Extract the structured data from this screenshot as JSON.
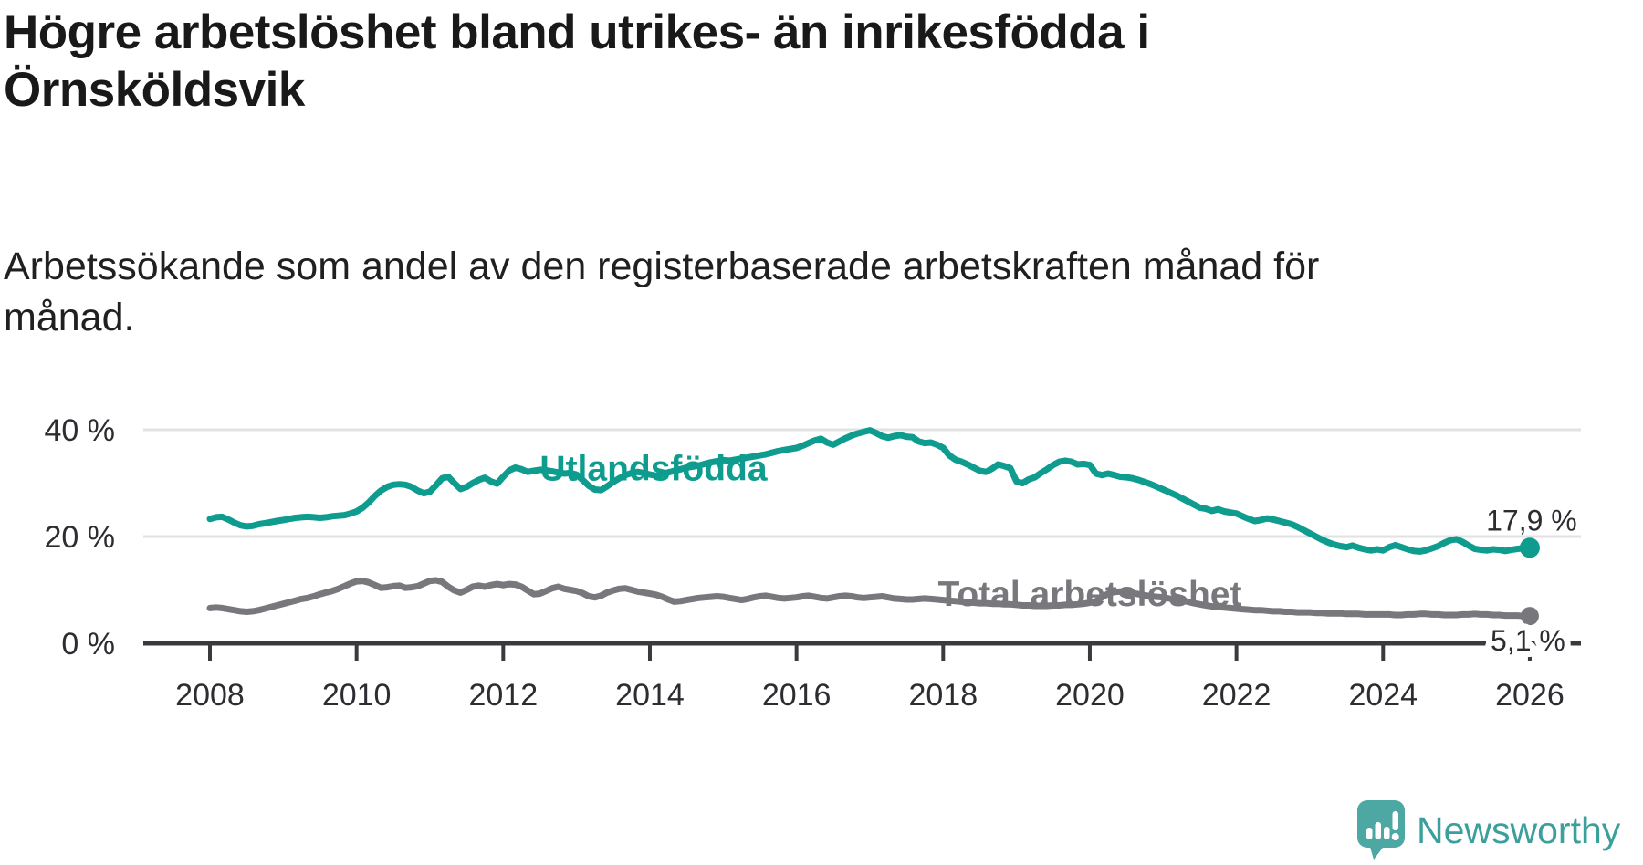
{
  "header": {
    "title": "Högre arbetslöshet bland utrikes- än inrikesfödda i\nÖrnsköldsvik",
    "subtitle": "Arbetssökande som andel av den registerbaserade arbetskraften månad för\nmånad."
  },
  "chart_data": {
    "type": "line",
    "title": "Högre arbetslöshet bland utrikes- än inrikesfödda i Örnsköldsvik",
    "subtitle": "Arbetssökande som andel av den registerbaserade arbetskraften månad för månad.",
    "unit": "%",
    "frequency": "monthly",
    "x_start": 2008,
    "x_end": 2026,
    "points_per_year": 12,
    "xlim": [
      2007.1,
      2026.7
    ],
    "ylim": [
      0,
      44
    ],
    "grid": "horizontal",
    "legend_position": "inline-labels",
    "x_tick_years": [
      2008,
      2010,
      2012,
      2014,
      2016,
      2018,
      2020,
      2022,
      2024,
      2026
    ],
    "y_ticks": [
      {
        "value": 40,
        "label": "40 %"
      },
      {
        "value": 20,
        "label": "20 %"
      },
      {
        "value": 0,
        "label": "0 %"
      }
    ],
    "style": {
      "grid_color": "#e2e2e2",
      "axis_color": "#3a3a3e",
      "tick_label_color": "#2d2d31",
      "value_label_color": "#2d2d31"
    },
    "series": [
      {
        "name": "Utlandsfödda",
        "color": "#0d9c8d",
        "end_label": "17,9 %",
        "end_value": 17.9,
        "label_anchor": {
          "year": 2014.05,
          "value": 32.9
        },
        "values": [
          23.3,
          23.6,
          23.7,
          23.2,
          22.6,
          22.1,
          21.9,
          22.0,
          22.3,
          22.5,
          22.7,
          22.9,
          23.1,
          23.3,
          23.5,
          23.6,
          23.7,
          23.6,
          23.5,
          23.6,
          23.8,
          23.9,
          24.0,
          24.3,
          24.7,
          25.4,
          26.4,
          27.6,
          28.6,
          29.3,
          29.7,
          29.8,
          29.7,
          29.3,
          28.6,
          28.1,
          28.4,
          29.6,
          30.9,
          31.2,
          30.0,
          28.9,
          29.3,
          30.0,
          30.6,
          31.0,
          30.3,
          29.9,
          31.2,
          32.4,
          32.9,
          32.6,
          32.1,
          32.3,
          32.5,
          32.4,
          32.2,
          32.0,
          31.8,
          31.9,
          31.6,
          30.6,
          29.5,
          28.8,
          28.7,
          29.4,
          30.2,
          30.9,
          31.5,
          31.9,
          32.1,
          31.9,
          31.6,
          31.4,
          31.7,
          32.0,
          32.3,
          32.6,
          32.9,
          33.1,
          33.3,
          33.6,
          33.9,
          34.1,
          34.3,
          34.2,
          34.4,
          34.6,
          34.8,
          35.0,
          35.2,
          35.4,
          35.7,
          36.0,
          36.2,
          36.4,
          36.6,
          37.0,
          37.5,
          38.0,
          38.3,
          37.6,
          37.2,
          37.8,
          38.4,
          38.9,
          39.3,
          39.6,
          39.9,
          39.4,
          38.8,
          38.5,
          38.8,
          39.0,
          38.7,
          38.6,
          37.8,
          37.5,
          37.6,
          37.2,
          36.6,
          35.2,
          34.4,
          34.0,
          33.5,
          32.9,
          32.3,
          32.1,
          32.7,
          33.5,
          33.2,
          32.8,
          30.3,
          30.0,
          30.7,
          31.1,
          31.9,
          32.6,
          33.4,
          34.0,
          34.2,
          34.0,
          33.5,
          33.6,
          33.4,
          31.8,
          31.5,
          31.8,
          31.5,
          31.2,
          31.1,
          30.9,
          30.6,
          30.2,
          29.8,
          29.3,
          28.8,
          28.3,
          27.8,
          27.2,
          26.6,
          26.0,
          25.4,
          25.2,
          24.8,
          25.1,
          24.7,
          24.5,
          24.3,
          23.8,
          23.3,
          22.9,
          23.1,
          23.4,
          23.2,
          22.9,
          22.6,
          22.3,
          21.8,
          21.2,
          20.6,
          20.0,
          19.4,
          18.9,
          18.5,
          18.2,
          18.0,
          18.3,
          17.9,
          17.6,
          17.4,
          17.6,
          17.4,
          18.0,
          18.4,
          18.0,
          17.6,
          17.3,
          17.2,
          17.4,
          17.8,
          18.2,
          18.8,
          19.3,
          19.5,
          19.0,
          18.3,
          17.7,
          17.5,
          17.4,
          17.6,
          17.5,
          17.3,
          17.5,
          17.7,
          17.8,
          17.9
        ]
      },
      {
        "name": "Total arbetslöshet",
        "color": "#77777c",
        "end_label": "5,1 %",
        "end_value": 5.1,
        "label_anchor": {
          "year": 2020.0,
          "value": 9.4
        },
        "values": [
          6.6,
          6.7,
          6.6,
          6.4,
          6.2,
          6.0,
          5.9,
          6.0,
          6.2,
          6.5,
          6.8,
          7.1,
          7.4,
          7.7,
          8.0,
          8.3,
          8.5,
          8.8,
          9.2,
          9.5,
          9.8,
          10.2,
          10.7,
          11.2,
          11.6,
          11.7,
          11.4,
          10.9,
          10.4,
          10.5,
          10.7,
          10.8,
          10.4,
          10.5,
          10.7,
          11.2,
          11.7,
          11.8,
          11.5,
          10.6,
          9.9,
          9.5,
          10.0,
          10.6,
          10.8,
          10.6,
          10.9,
          11.1,
          10.9,
          11.1,
          11.0,
          10.6,
          9.9,
          9.2,
          9.3,
          9.8,
          10.3,
          10.6,
          10.2,
          10.0,
          9.8,
          9.4,
          8.8,
          8.6,
          8.9,
          9.5,
          9.9,
          10.2,
          10.3,
          10.0,
          9.7,
          9.5,
          9.3,
          9.1,
          8.7,
          8.2,
          7.8,
          7.9,
          8.1,
          8.3,
          8.5,
          8.6,
          8.7,
          8.8,
          8.7,
          8.5,
          8.3,
          8.1,
          8.3,
          8.6,
          8.8,
          8.9,
          8.7,
          8.5,
          8.4,
          8.5,
          8.6,
          8.8,
          8.9,
          8.7,
          8.5,
          8.4,
          8.6,
          8.8,
          8.9,
          8.8,
          8.6,
          8.5,
          8.6,
          8.7,
          8.8,
          8.6,
          8.4,
          8.3,
          8.2,
          8.2,
          8.3,
          8.4,
          8.3,
          8.2,
          8.1,
          8.0,
          7.9,
          7.8,
          7.7,
          7.6,
          7.5,
          7.5,
          7.4,
          7.4,
          7.3,
          7.3,
          7.2,
          7.1,
          7.1,
          7.0,
          7.0,
          7.0,
          7.1,
          7.1,
          7.2,
          7.2,
          7.3,
          7.4,
          7.6,
          7.9,
          8.6,
          9.3,
          9.6,
          9.7,
          9.6,
          9.4,
          9.2,
          9.0,
          8.8,
          8.7,
          8.6,
          8.4,
          8.2,
          8.0,
          7.8,
          7.5,
          7.3,
          7.1,
          6.9,
          6.8,
          6.7,
          6.6,
          6.5,
          6.4,
          6.3,
          6.2,
          6.2,
          6.1,
          6.0,
          6.0,
          5.9,
          5.9,
          5.8,
          5.8,
          5.8,
          5.7,
          5.7,
          5.6,
          5.6,
          5.6,
          5.5,
          5.5,
          5.5,
          5.4,
          5.4,
          5.4,
          5.4,
          5.4,
          5.3,
          5.3,
          5.4,
          5.4,
          5.5,
          5.5,
          5.4,
          5.4,
          5.3,
          5.3,
          5.3,
          5.4,
          5.4,
          5.5,
          5.4,
          5.4,
          5.3,
          5.3,
          5.2,
          5.2,
          5.2,
          5.1,
          5.1
        ]
      }
    ]
  },
  "footer": {
    "brand": "Newsworthy",
    "brand_color": "#3ba09b",
    "icon_color": "#4da7a3"
  }
}
